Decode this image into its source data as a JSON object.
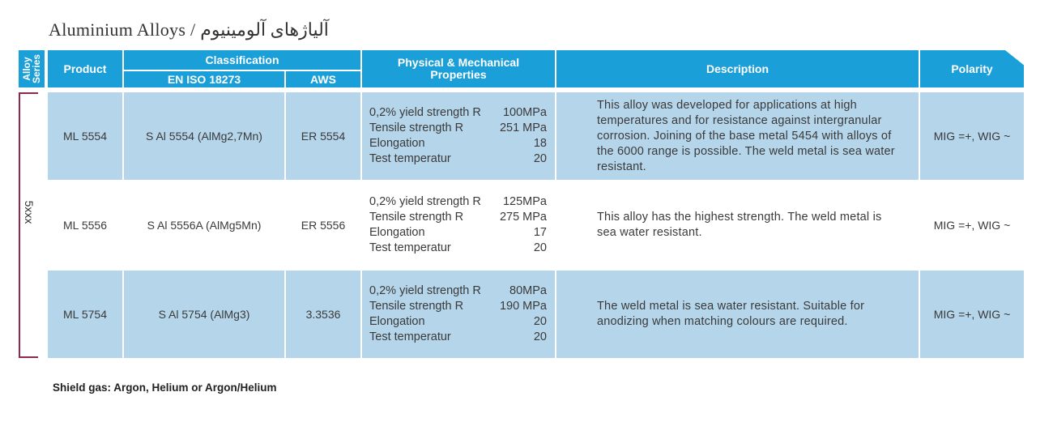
{
  "title": "Aluminium Alloys / آلیاژهای آلومینیوم",
  "header": {
    "alloy_series": "Alloy\nSeries",
    "product": "Product",
    "classification": "Classification",
    "en_iso": "EN ISO 18273",
    "aws": "AWS",
    "properties": "Physical & Mechanical\nProperties",
    "description": "Description",
    "polarity": "Polarity"
  },
  "series_label": "5xxx",
  "rows": [
    {
      "product": "ML 5554",
      "en_iso": "S Al 5554 (AlMg2,7Mn)",
      "aws": "ER 5554",
      "props": [
        {
          "label": "0,2% yield strength R",
          "value": "100MPa"
        },
        {
          "label": "Tensile strength R",
          "value": "251 MPa"
        },
        {
          "label": "Elongation",
          "value": "18"
        },
        {
          "label": "Test temperatur",
          "value": "20"
        }
      ],
      "description": "This alloy was developed for applications at high temperatures and for resistance against intergranular corrosion. Joining of the base metal 5454 with alloys of the 6000 range is possible. The weld metal is sea water resistant.",
      "polarity": "MIG =+, WIG ~"
    },
    {
      "product": "ML 5556",
      "en_iso": "S Al 5556A (AlMg5Mn)",
      "aws": "ER 5556",
      "props": [
        {
          "label": "0,2% yield strength R",
          "value": "125MPa"
        },
        {
          "label": "Tensile strength R",
          "value": "275 MPa"
        },
        {
          "label": "Elongation",
          "value": "17"
        },
        {
          "label": "Test temperatur",
          "value": "20"
        }
      ],
      "description": "This alloy has the highest strength. The weld metal is sea water resistant.",
      "polarity": "MIG =+, WIG ~"
    },
    {
      "product": "ML 5754",
      "en_iso": "S Al 5754 (AlMg3)",
      "aws": "3.3536",
      "props": [
        {
          "label": "0,2% yield strength R",
          "value": "80MPa"
        },
        {
          "label": "Tensile strength R",
          "value": "190 MPa"
        },
        {
          "label": "Elongation",
          "value": "20"
        },
        {
          "label": "Test temperatur",
          "value": "20"
        }
      ],
      "description": "The weld metal is sea water resistant. Suitable for anodizing when matching colours are required.",
      "polarity": "MIG =+, WIG ~"
    }
  ],
  "footnote": "Shield gas: Argon, Helium or Argon/Helium"
}
